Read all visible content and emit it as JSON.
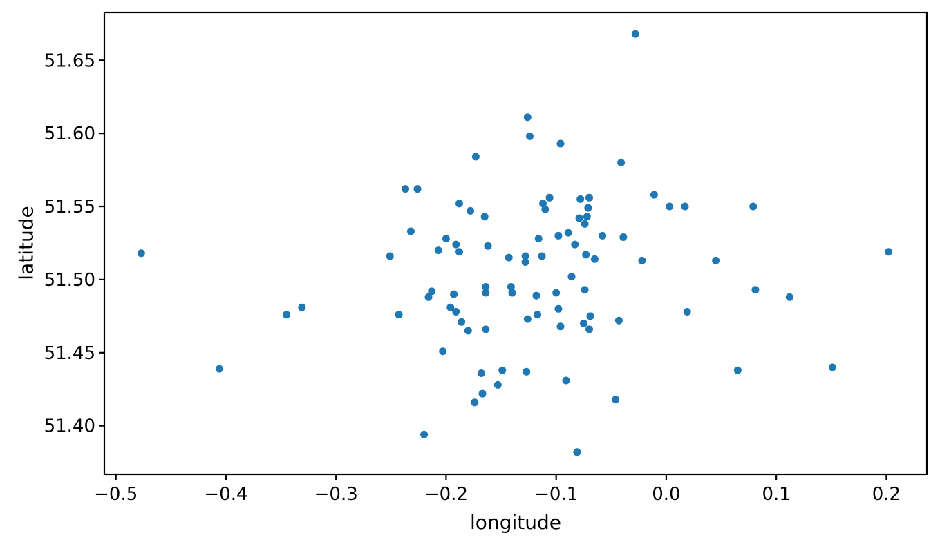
{
  "chart_data": {
    "type": "scatter",
    "title": "",
    "xlabel": "longitude",
    "ylabel": "latitude",
    "xlim": [
      -0.5105,
      0.2368
    ],
    "ylim": [
      51.3668,
      51.6827
    ],
    "x_ticks": [
      -0.5,
      -0.4,
      -0.3,
      -0.2,
      -0.1,
      0.0,
      0.1,
      0.2
    ],
    "x_tick_labels": [
      "−0.5",
      "−0.4",
      "−0.3",
      "−0.2",
      "−0.1",
      "0.0",
      "0.1",
      "0.2"
    ],
    "y_ticks": [
      51.4,
      51.45,
      51.5,
      51.55,
      51.6,
      51.65
    ],
    "y_tick_labels": [
      "51.40",
      "51.45",
      "51.50",
      "51.55",
      "51.60",
      "51.65"
    ],
    "grid": false,
    "legend": null,
    "marker_color": "#1f77b4",
    "marker_radius": 5.5,
    "spine_color": "#000000",
    "points": [
      [
        -0.477,
        51.518
      ],
      [
        -0.406,
        51.439
      ],
      [
        -0.345,
        51.476
      ],
      [
        -0.331,
        51.481
      ],
      [
        -0.126,
        51.611
      ],
      [
        -0.124,
        51.598
      ],
      [
        -0.096,
        51.593
      ],
      [
        -0.173,
        51.584
      ],
      [
        -0.237,
        51.562
      ],
      [
        -0.226,
        51.562
      ],
      [
        -0.188,
        51.552
      ],
      [
        -0.178,
        51.547
      ],
      [
        -0.165,
        51.543
      ],
      [
        -0.106,
        51.556
      ],
      [
        -0.112,
        51.552
      ],
      [
        -0.11,
        51.548
      ],
      [
        -0.028,
        51.668
      ],
      [
        -0.041,
        51.58
      ],
      [
        -0.011,
        51.558
      ],
      [
        0.003,
        51.55
      ],
      [
        0.017,
        51.55
      ],
      [
        0.079,
        51.55
      ],
      [
        -0.078,
        51.555
      ],
      [
        -0.07,
        51.556
      ],
      [
        -0.071,
        51.549
      ],
      [
        -0.079,
        51.542
      ],
      [
        -0.072,
        51.543
      ],
      [
        -0.074,
        51.538
      ],
      [
        -0.232,
        51.533
      ],
      [
        -0.2,
        51.528
      ],
      [
        -0.207,
        51.52
      ],
      [
        -0.191,
        51.524
      ],
      [
        -0.188,
        51.519
      ],
      [
        -0.162,
        51.523
      ],
      [
        -0.143,
        51.515
      ],
      [
        -0.128,
        51.516
      ],
      [
        -0.128,
        51.512
      ],
      [
        -0.113,
        51.516
      ],
      [
        -0.116,
        51.528
      ],
      [
        -0.098,
        51.53
      ],
      [
        -0.089,
        51.532
      ],
      [
        -0.083,
        51.524
      ],
      [
        -0.251,
        51.516
      ],
      [
        -0.058,
        51.53
      ],
      [
        -0.039,
        51.529
      ],
      [
        -0.073,
        51.517
      ],
      [
        -0.065,
        51.514
      ],
      [
        -0.022,
        51.513
      ],
      [
        0.045,
        51.513
      ],
      [
        -0.086,
        51.502
      ],
      [
        -0.164,
        51.495
      ],
      [
        -0.164,
        51.491
      ],
      [
        -0.141,
        51.495
      ],
      [
        -0.14,
        51.491
      ],
      [
        -0.213,
        51.492
      ],
      [
        -0.216,
        51.488
      ],
      [
        -0.193,
        51.49
      ],
      [
        -0.118,
        51.489
      ],
      [
        -0.1,
        51.491
      ],
      [
        -0.074,
        51.493
      ],
      [
        0.081,
        51.493
      ],
      [
        0.112,
        51.488
      ],
      [
        0.019,
        51.478
      ],
      [
        -0.098,
        51.48
      ],
      [
        -0.196,
        51.481
      ],
      [
        -0.191,
        51.478
      ],
      [
        -0.243,
        51.476
      ],
      [
        -0.126,
        51.473
      ],
      [
        -0.117,
        51.476
      ],
      [
        -0.186,
        51.471
      ],
      [
        -0.18,
        51.465
      ],
      [
        -0.164,
        51.466
      ],
      [
        -0.096,
        51.468
      ],
      [
        -0.043,
        51.472
      ],
      [
        -0.069,
        51.475
      ],
      [
        -0.075,
        51.47
      ],
      [
        -0.07,
        51.466
      ],
      [
        -0.203,
        51.451
      ],
      [
        -0.168,
        51.436
      ],
      [
        -0.149,
        51.438
      ],
      [
        -0.127,
        51.437
      ],
      [
        -0.153,
        51.428
      ],
      [
        -0.167,
        51.422
      ],
      [
        -0.174,
        51.416
      ],
      [
        -0.091,
        51.431
      ],
      [
        -0.22,
        51.394
      ],
      [
        -0.081,
        51.382
      ],
      [
        -0.046,
        51.418
      ],
      [
        0.065,
        51.438
      ],
      [
        0.151,
        51.44
      ],
      [
        0.202,
        51.519
      ]
    ]
  }
}
